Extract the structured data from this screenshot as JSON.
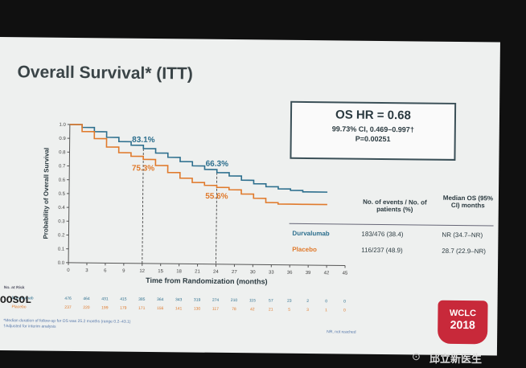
{
  "slide": {
    "title": "Overall Survival* (ITT)",
    "hr_box": {
      "hr": "OS HR = 0.68",
      "ci": "99.73% CI, 0.469–0.997†",
      "p": "P=0.00251"
    },
    "table": {
      "col1": "No. of events / No. of patients (%)",
      "col2": "Median OS (95% CI) months",
      "rows": [
        {
          "arm": "Durvalumab",
          "events": "183/476 (38.4)",
          "median": "NR (34.7–NR)"
        },
        {
          "arm": "Placebo",
          "events": "116/237 (48.9)",
          "median": "28.7 (22.9–NR)"
        }
      ]
    },
    "risk_label": "No. at Risk",
    "risk_rows": [
      {
        "arm": "Durvalumab",
        "counts": [
          "476",
          "464",
          "431",
          "415",
          "385",
          "364",
          "343",
          "319",
          "274",
          "210",
          "115",
          "57",
          "23",
          "2",
          "0",
          "0"
        ]
      },
      {
        "arm": "Placebo",
        "counts": [
          "237",
          "220",
          "199",
          "179",
          "171",
          "156",
          "141",
          "130",
          "117",
          "78",
          "42",
          "21",
          "5",
          "3",
          "1",
          "0"
        ]
      }
    ],
    "footnotes": [
      "*Median duration of follow-up for OS was 25.2 months (range 0.2–43.1)",
      "†Adjusted for interim analysis"
    ],
    "nr_note": "NR, not reached",
    "logo": {
      "line1": "WCLC",
      "line2": "2018"
    },
    "watermark": "邱立新医生",
    "camera_text": "OOSOL",
    "colors": {
      "durvalumab": "#2d6f8e",
      "placebo": "#e07a2c",
      "axis": "#555555"
    }
  },
  "chart_data": {
    "type": "line",
    "title": "",
    "xlabel": "Time from Randomization (months)",
    "ylabel": "Probability of Overall Survival",
    "xlim": [
      0,
      45
    ],
    "ylim": [
      0,
      1.0
    ],
    "xticks": [
      0,
      3,
      6,
      9,
      12,
      15,
      18,
      21,
      24,
      27,
      30,
      33,
      36,
      39,
      42,
      45
    ],
    "yticks": [
      0.0,
      0.1,
      0.2,
      0.3,
      0.4,
      0.5,
      0.6,
      0.7,
      0.8,
      0.9,
      1.0
    ],
    "series": [
      {
        "name": "Durvalumab",
        "x": [
          0,
          2,
          4,
          6,
          8,
          10,
          12,
          14,
          16,
          18,
          20,
          22,
          24,
          26,
          28,
          30,
          32,
          34,
          36,
          38,
          40,
          42
        ],
        "y": [
          1.0,
          0.98,
          0.95,
          0.91,
          0.88,
          0.855,
          0.831,
          0.8,
          0.77,
          0.74,
          0.71,
          0.685,
          0.663,
          0.64,
          0.61,
          0.585,
          0.565,
          0.55,
          0.54,
          0.53,
          0.53,
          0.53
        ]
      },
      {
        "name": "Placebo",
        "x": [
          0,
          2,
          4,
          6,
          8,
          10,
          12,
          14,
          16,
          18,
          20,
          22,
          24,
          26,
          28,
          30,
          32,
          34,
          36,
          38,
          40,
          42
        ],
        "y": [
          1.0,
          0.95,
          0.9,
          0.84,
          0.8,
          0.775,
          0.753,
          0.71,
          0.66,
          0.62,
          0.59,
          0.57,
          0.556,
          0.54,
          0.51,
          0.48,
          0.45,
          0.44,
          0.44,
          0.44,
          0.44,
          0.44
        ]
      }
    ],
    "annotations": [
      {
        "text": "83.1%",
        "series": "Durvalumab",
        "x": 12,
        "y": 0.831
      },
      {
        "text": "75.3%",
        "series": "Placebo",
        "x": 12,
        "y": 0.753
      },
      {
        "text": "66.3%",
        "series": "Durvalumab",
        "x": 24,
        "y": 0.663
      },
      {
        "text": "55.6%",
        "series": "Placebo",
        "x": 24,
        "y": 0.556
      }
    ],
    "dashed_guides_x": [
      12,
      24
    ]
  }
}
